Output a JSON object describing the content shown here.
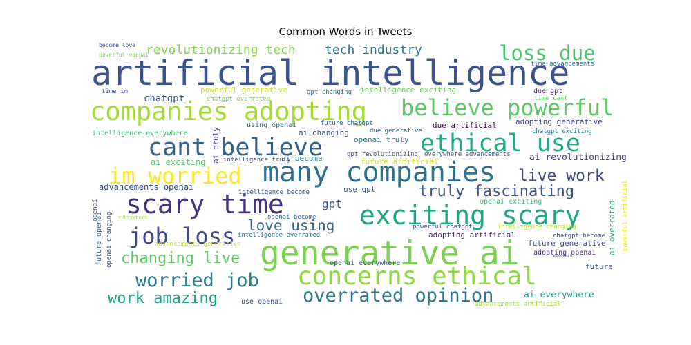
{
  "chart_data": {
    "type": "wordcloud",
    "title": "Common Words in Tweets",
    "words": [
      {
        "text": "artificial intelligence",
        "weight": 1.0,
        "color": "#3b528b"
      },
      {
        "text": "generative ai",
        "weight": 0.97,
        "color": "#7ad151"
      },
      {
        "text": "many companies",
        "weight": 0.86,
        "color": "#2c728e"
      },
      {
        "text": "companies adopting",
        "weight": 0.82,
        "color": "#a5db36"
      },
      {
        "text": "exciting scary",
        "weight": 0.8,
        "color": "#21a685"
      },
      {
        "text": "scary time",
        "weight": 0.78,
        "color": "#46327e"
      },
      {
        "text": "concerns ethical",
        "weight": 0.74,
        "color": "#8fd744"
      },
      {
        "text": "cant believe",
        "weight": 0.72,
        "color": "#33638d"
      },
      {
        "text": "ethical use",
        "weight": 0.7,
        "color": "#22a884"
      },
      {
        "text": "believe powerful",
        "weight": 0.66,
        "color": "#5ec962"
      },
      {
        "text": "im worried",
        "weight": 0.64,
        "color": "#fde725"
      },
      {
        "text": "job loss",
        "weight": 0.6,
        "color": "#3e4a89"
      },
      {
        "text": "overrated opinion",
        "weight": 0.58,
        "color": "#2a788e"
      },
      {
        "text": "worried job",
        "weight": 0.56,
        "color": "#287c8e"
      },
      {
        "text": "loss due",
        "weight": 0.55,
        "color": "#4ac16d"
      },
      {
        "text": "truly fascinating",
        "weight": 0.47,
        "color": "#3a548c"
      },
      {
        "text": "live work",
        "weight": 0.45,
        "color": "#404688"
      },
      {
        "text": "changing live",
        "weight": 0.45,
        "color": "#5ec962"
      },
      {
        "text": "work amazing",
        "weight": 0.44,
        "color": "#1fa187"
      },
      {
        "text": "love using",
        "weight": 0.43,
        "color": "#31688e"
      },
      {
        "text": "revolutionizing tech",
        "weight": 0.42,
        "color": "#84d44b"
      },
      {
        "text": "tech industry",
        "weight": 0.41,
        "color": "#2a788e"
      },
      {
        "text": "gpt",
        "weight": 0.32,
        "color": "#365c8d"
      },
      {
        "text": "chatgpt",
        "weight": 0.3,
        "color": "#3b528b"
      },
      {
        "text": "ai revolutionizing",
        "weight": 0.26,
        "color": "#433e85"
      },
      {
        "text": "advancements openai",
        "weight": 0.25,
        "color": "#3b528b"
      },
      {
        "text": "ai exciting",
        "weight": 0.24,
        "color": "#52c569"
      },
      {
        "text": "adopting artificial",
        "weight": 0.24,
        "color": "#482475"
      },
      {
        "text": "ai everywhere",
        "weight": 0.24,
        "color": "#1f988b"
      },
      {
        "text": "future generative",
        "weight": 0.23,
        "color": "#3e4989"
      },
      {
        "text": "future",
        "weight": 0.23,
        "color": "#3b528b"
      },
      {
        "text": "intelligence exciting",
        "weight": 0.22,
        "color": "#6ccd5a"
      },
      {
        "text": "powerful generative",
        "weight": 0.22,
        "color": "#c8e020"
      },
      {
        "text": "due artificial",
        "weight": 0.22,
        "color": "#440154"
      },
      {
        "text": "ai changing",
        "weight": 0.22,
        "color": "#3b528b"
      },
      {
        "text": "openai truly",
        "weight": 0.22,
        "color": "#2a788e"
      },
      {
        "text": "ai become",
        "weight": 0.22,
        "color": "#277f8e"
      },
      {
        "text": "future artificial",
        "weight": 0.22,
        "color": "#d8e219"
      },
      {
        "text": "use gpt",
        "weight": 0.21,
        "color": "#3b528b"
      },
      {
        "text": "adopting generative",
        "weight": 0.21,
        "color": "#3f4788"
      },
      {
        "text": "gpt changing",
        "weight": 0.2,
        "color": "#2e6f8e"
      },
      {
        "text": "time advancements",
        "weight": 0.19,
        "color": "#2c718e"
      },
      {
        "text": "due gpt",
        "weight": 0.2,
        "color": "#472f7d"
      },
      {
        "text": "time cant",
        "weight": 0.18,
        "color": "#5ec962"
      },
      {
        "text": "time im",
        "weight": 0.18,
        "color": "#3f4889"
      },
      {
        "text": "chatgpt overrated",
        "weight": 0.18,
        "color": "#74d055"
      },
      {
        "text": "using openai",
        "weight": 0.19,
        "color": "#31688e"
      },
      {
        "text": "future chatgpt",
        "weight": 0.18,
        "color": "#32658e"
      },
      {
        "text": "due generative",
        "weight": 0.17,
        "color": "#31688e"
      },
      {
        "text": "chatgpt exciting",
        "weight": 0.17,
        "color": "#2e6e8e"
      },
      {
        "text": "intelligence everywhere",
        "weight": 0.19,
        "color": "#3dbc74"
      },
      {
        "text": "everywhere advancements",
        "weight": 0.17,
        "color": "#3a538b"
      },
      {
        "text": "gpt revolutionizing",
        "weight": 0.17,
        "color": "#3e4c8a"
      },
      {
        "text": "intelligence truly",
        "weight": 0.17,
        "color": "#3c4f8a"
      },
      {
        "text": "ai truly",
        "weight": 0.19,
        "color": "#424086"
      },
      {
        "text": "intelligence become",
        "weight": 0.17,
        "color": "#3b528b"
      },
      {
        "text": "openai exciting",
        "weight": 0.18,
        "color": "#3fbc73"
      },
      {
        "text": "openai become",
        "weight": 0.16,
        "color": "#34618d"
      },
      {
        "text": "powerful chatgpt",
        "weight": 0.17,
        "color": "#3d4e8a"
      },
      {
        "text": "intelligence changing",
        "weight": 0.16,
        "color": "#b5de2b"
      },
      {
        "text": "intelligence overrated",
        "weight": 0.16,
        "color": "#2d708e"
      },
      {
        "text": "chatgpt become",
        "weight": 0.16,
        "color": "#3b528b"
      },
      {
        "text": "advancements generative",
        "weight": 0.16,
        "color": "#cde11d"
      },
      {
        "text": "adopting openai",
        "weight": 0.17,
        "color": "#482878"
      },
      {
        "text": "openai everywhere",
        "weight": 0.17,
        "color": "#3a548c"
      },
      {
        "text": "use openai",
        "weight": 0.16,
        "color": "#3a548c"
      },
      {
        "text": "advancements artificial",
        "weight": 0.15,
        "color": "#a0da39"
      },
      {
        "text": "future openai",
        "weight": 0.17,
        "color": "#31688e"
      },
      {
        "text": "openai changing",
        "weight": 0.16,
        "color": "#3c4f8a"
      },
      {
        "text": "ai overrated",
        "weight": 0.17,
        "color": "#29af7f"
      },
      {
        "text": "powerful artificial",
        "weight": 0.15,
        "color": "#dde318"
      },
      {
        "text": "openai",
        "weight": 0.14,
        "color": "#3b528b"
      },
      {
        "text": "everywhere",
        "weight": 0.12,
        "color": "#a2da37"
      },
      {
        "text": "become love",
        "weight": 0.13,
        "color": "#3b528b"
      },
      {
        "text": "powerful openai",
        "weight": 0.14,
        "color": "#7ad151"
      },
      {
        "text": "advancements",
        "weight": 0.08,
        "color": "#46337f"
      }
    ]
  }
}
